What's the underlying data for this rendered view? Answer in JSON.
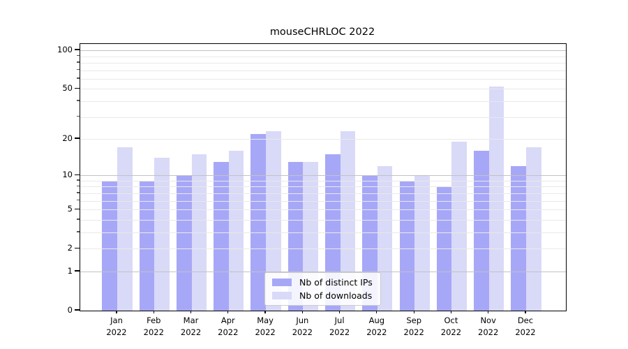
{
  "chart_data": {
    "type": "bar",
    "title": "mouseCHRLOC 2022",
    "categories": [
      "Jan",
      "Feb",
      "Mar",
      "Apr",
      "May",
      "Jun",
      "Jul",
      "Aug",
      "Sep",
      "Oct",
      "Nov",
      "Dec"
    ],
    "year": "2022",
    "series": [
      {
        "name": "Nb of distinct IPs",
        "color": "#a7a7f8",
        "values": [
          9,
          9,
          10,
          13,
          22,
          13,
          15,
          10,
          9,
          8,
          16,
          12
        ]
      },
      {
        "name": "Nb of downloads",
        "color": "#d9d9f8",
        "values": [
          17,
          14,
          15,
          16,
          23,
          13,
          23,
          12,
          10,
          19,
          52,
          17
        ]
      }
    ],
    "xlabel": "",
    "ylabel": "",
    "yscale": "log10(1+x)",
    "yticks_labeled": [
      0,
      1,
      2,
      5,
      10,
      20,
      50,
      100
    ],
    "yticks_major": [
      1,
      10,
      100
    ],
    "yticks_minor": [
      2,
      3,
      4,
      5,
      6,
      7,
      8,
      9,
      20,
      30,
      40,
      50,
      60,
      70,
      80,
      90
    ],
    "ylim": [
      0,
      112
    ],
    "grid": true,
    "legend_position": "bottom-center"
  },
  "colors": {
    "grid_major": "#c2c2c2",
    "grid_minor": "#e9e9e9",
    "spine": "#000000",
    "background": "#ffffff"
  }
}
